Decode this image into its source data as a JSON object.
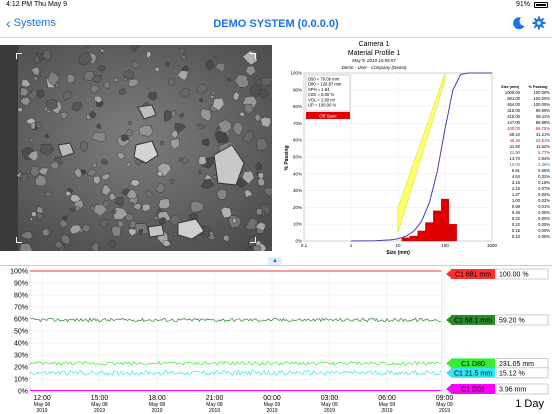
{
  "status_bar": {
    "time": "4:12 PM",
    "date": "Thu May 9",
    "battery": "91%"
  },
  "nav": {
    "back_label": "Systems",
    "title": "DEMO SYSTEM (0.0.0.0)"
  },
  "psd": {
    "title": "Camera 1",
    "subtitle": "Material Profile 1",
    "datetime": "May 9, 2019 10:55:57",
    "source": "Demo - User - Company (Demo)",
    "stats": [
      "D50 = 79.06 mm",
      "D80 = 126.87 mm",
      "SPH = 1.84",
      "CIDI = 5.00 %",
      "VOL = 2.60 m³",
      "UP = 100.00 %"
    ],
    "off_spec": "Off Spec",
    "ylabel": "% Passing",
    "xlabel": "Size (mm)",
    "table_header": {
      "size": "Size (mm)",
      "passing": "% Passing"
    },
    "table_rows": [
      {
        "size": "1000.00",
        "passing": "100.00%",
        "color": "#000000"
      },
      {
        "size": "681.00",
        "passing": "100.00%",
        "color": "#000000"
      },
      {
        "size": "464.00",
        "passing": "100.00%",
        "color": "#000000"
      },
      {
        "size": "316.00",
        "passing": "99.99%",
        "color": "#000000"
      },
      {
        "size": "215.00",
        "passing": "99.11%",
        "color": "#000000"
      },
      {
        "size": "147.00",
        "passing": "89.89%",
        "color": "#000000"
      },
      {
        "size": "100.00",
        "passing": "66.75%",
        "color": "#e00000"
      },
      {
        "size": "68.10",
        "passing": "41.21%",
        "color": "#000000"
      },
      {
        "size": "46.40",
        "passing": "22.61%",
        "color": "#e00000"
      },
      {
        "size": "31.60",
        "passing": "11.62%",
        "color": "#000000"
      },
      {
        "size": "21.50",
        "passing": "5.77%",
        "color": "#e00000"
      },
      {
        "size": "14.70",
        "passing": "2.84%",
        "color": "#000000"
      },
      {
        "size": "10.00",
        "passing": "1.38%",
        "color": "#00a000"
      },
      {
        "size": "6.81",
        "passing": "0.65%",
        "color": "#000000"
      },
      {
        "size": "4.64",
        "passing": "0.32%",
        "color": "#000000"
      },
      {
        "size": "3.16",
        "passing": "0.16%",
        "color": "#000000"
      },
      {
        "size": "2.15",
        "passing": "0.07%",
        "color": "#000000"
      },
      {
        "size": "1.47",
        "passing": "0.04%",
        "color": "#000000"
      },
      {
        "size": "1.00",
        "passing": "0.02%",
        "color": "#000000"
      },
      {
        "size": "0.68",
        "passing": "0.01%",
        "color": "#000000"
      },
      {
        "size": "0.46",
        "passing": "0.00%",
        "color": "#000000"
      },
      {
        "size": "0.32",
        "passing": "0.00%",
        "color": "#000000"
      },
      {
        "size": "0.22",
        "passing": "0.00%",
        "color": "#000000"
      },
      {
        "size": "0.15",
        "passing": "0.00%",
        "color": "#000000"
      },
      {
        "size": "0.10",
        "passing": "0.00%",
        "color": "#000000"
      }
    ]
  },
  "chart_data": [
    {
      "type": "line",
      "xscale": "log",
      "xlim": [
        0.1,
        1000
      ],
      "ylim": [
        0,
        100
      ],
      "x_ticks": [
        "0.1",
        "1",
        "10",
        "100",
        "1000"
      ],
      "y_ticks": [
        "0%",
        "10%",
        "20%",
        "30%",
        "40%",
        "50%",
        "60%",
        "70%",
        "80%",
        "90%",
        "100%"
      ],
      "series": [
        {
          "type": "line",
          "color": "#4040c0",
          "x": [
            1,
            3.16,
            6.81,
            10,
            14.7,
            21.5,
            31.6,
            46.4,
            68.1,
            100,
            147,
            215,
            316,
            1000
          ],
          "y": [
            0.02,
            0.16,
            0.65,
            1.38,
            2.84,
            5.77,
            11.62,
            22.61,
            41.21,
            66.75,
            89.89,
            99.11,
            99.99,
            100
          ]
        },
        {
          "type": "bar",
          "color": "#e00000",
          "x": [
            14.7,
            21.5,
            31.6,
            46.4,
            68.1,
            100,
            147
          ],
          "y": [
            2,
            3,
            6,
            11,
            18,
            25,
            10
          ]
        }
      ],
      "band": {
        "color": "#ffff66",
        "x": [
          10,
          100
        ],
        "y_low": [
          5,
          95
        ],
        "y_high": [
          20,
          100
        ]
      }
    },
    {
      "type": "line",
      "y_ticks": [
        "0%",
        "10%",
        "20%",
        "30%",
        "40%",
        "50%",
        "60%",
        "70%",
        "80%",
        "90%",
        "100%"
      ],
      "ylim": [
        0,
        100
      ],
      "x_ticks": [
        {
          "time": "12:00",
          "date": "May 08",
          "year": "2019"
        },
        {
          "time": "15:00",
          "date": "May 08",
          "year": "2019"
        },
        {
          "time": "18:00",
          "date": "May 08",
          "year": "2019"
        },
        {
          "time": "21:00",
          "date": "May 08",
          "year": "2019"
        },
        {
          "time": "00:00",
          "date": "May 09",
          "year": "2019"
        },
        {
          "time": "03:00",
          "date": "May 09",
          "year": "2019"
        },
        {
          "time": "06:00",
          "date": "May 09",
          "year": "2019"
        },
        {
          "time": "09:00",
          "date": "May 09",
          "year": "2019"
        }
      ],
      "series": [
        {
          "name": "C1 681 mm",
          "value_label": "100.00 %",
          "level": 100,
          "noise": 0,
          "color": "#ff3030"
        },
        {
          "name": "C1 68.1 mm",
          "value_label": "59.20 %",
          "level": 59.2,
          "noise": 1.5,
          "color": "#2a8a2a"
        },
        {
          "name": "C1 D80",
          "value_label": "231.05 mm",
          "level": 23,
          "noise": 1.5,
          "color": "#33ee33"
        },
        {
          "name": "C1 21.5 mm",
          "value_label": "15.12 %",
          "level": 15.12,
          "noise": 2,
          "color": "#33e6f0"
        },
        {
          "name": "C1 D01",
          "value_label": "3.96 mm",
          "level": 0.4,
          "noise": 0,
          "color": "#ff00ff"
        }
      ]
    }
  ],
  "timescale": "1 Day"
}
